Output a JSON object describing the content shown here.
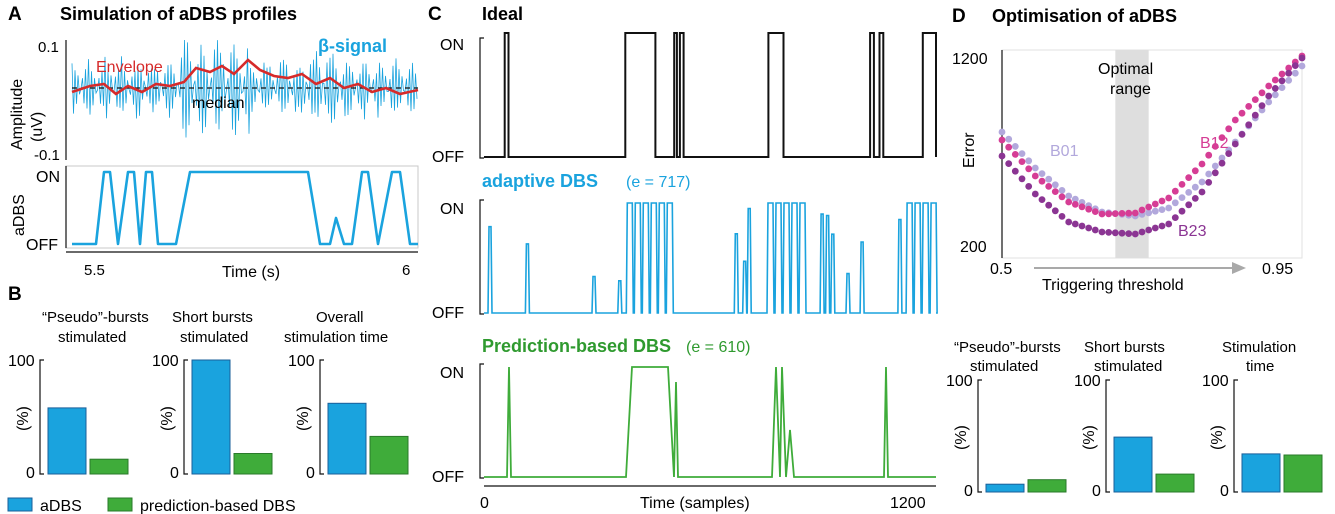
{
  "colors": {
    "adbs": "#1aa3de",
    "pred": "#3fac3a",
    "envelope": "#d62a2a",
    "black": "#111111",
    "b01": "#b2a8dc",
    "b12": "#d63d95",
    "b23": "#8b3593",
    "optimal": "#dedede"
  },
  "panel_a": {
    "letter": "A",
    "title": "Simulation of aDBS profiles",
    "ylabel_top_1": "Amplitude",
    "ylabel_top_2": "(uV)",
    "ytick_top": "0.1",
    "ytick_bottom": "-0.1",
    "envelope_label": "Envelope",
    "beta_label": "β-signal",
    "median_label": "median",
    "ylabel_bottom": "aDBS",
    "on_label": "ON",
    "off_label": "OFF",
    "xlabel": "Time (s)",
    "xtick_left": "5.5",
    "xtick_right": "6"
  },
  "panel_b": {
    "letter": "B",
    "titles_1": [
      "“Pseudo”-bursts",
      "Short bursts",
      "Overall"
    ],
    "titles_2": [
      "stimulated",
      "stimulated",
      "stimulation time"
    ],
    "ylabel": "(%)",
    "ytick_top": "100",
    "ytick_bottom": "0",
    "legend_adbs": "aDBS",
    "legend_pred": "prediction-based DBS"
  },
  "panel_c": {
    "letter": "C",
    "ideal_title": "Ideal",
    "adaptive_title": "adaptive DBS",
    "adaptive_err": "(e = 717)",
    "pred_title": "Prediction-based DBS",
    "pred_err": "(e = 610)",
    "on_label": "ON",
    "off_label": "OFF",
    "xlabel": "Time (samples)",
    "xtick_left": "0",
    "xtick_right": "1200"
  },
  "panel_d": {
    "letter": "D",
    "title": "Optimisation of aDBS",
    "ylabel": "Error",
    "ytick_top": "1200",
    "ytick_bottom": "200",
    "xlabel": "Triggering threshold",
    "xtick_left": "0.5",
    "xtick_right": "0.95",
    "optimal_1": "Optimal",
    "optimal_2": "range",
    "series_b01": "B01",
    "series_b12": "B12",
    "series_b23": "B23",
    "bar_titles_1": [
      "“Pseudo”-bursts",
      "Short bursts",
      "Stimulation"
    ],
    "bar_titles_2": [
      "stimulated",
      "stimulated",
      "time"
    ],
    "bar_ylabel": "(%)",
    "bar_ytick_top": "100",
    "bar_ytick_bottom": "0"
  },
  "chart_data": [
    {
      "type": "bar",
      "panel": "B",
      "title": "“Pseudo”-bursts stimulated",
      "ylabel": "(%)",
      "ylim": [
        0,
        100
      ],
      "series": [
        {
          "name": "aDBS",
          "values": [
            58
          ]
        },
        {
          "name": "prediction-based DBS",
          "values": [
            13
          ]
        }
      ]
    },
    {
      "type": "bar",
      "panel": "B",
      "title": "Short bursts stimulated",
      "ylabel": "(%)",
      "ylim": [
        0,
        100
      ],
      "series": [
        {
          "name": "aDBS",
          "values": [
            100
          ]
        },
        {
          "name": "prediction-based DBS",
          "values": [
            18
          ]
        }
      ]
    },
    {
      "type": "bar",
      "panel": "B",
      "title": "Overall stimulation time",
      "ylabel": "(%)",
      "ylim": [
        0,
        100
      ],
      "series": [
        {
          "name": "aDBS",
          "values": [
            62
          ]
        },
        {
          "name": "prediction-based DBS",
          "values": [
            33
          ]
        }
      ]
    },
    {
      "type": "bar",
      "panel": "D",
      "title": "“Pseudo”-bursts stimulated",
      "ylabel": "(%)",
      "ylim": [
        0,
        100
      ],
      "series": [
        {
          "name": "aDBS",
          "values": [
            7
          ]
        },
        {
          "name": "prediction-based DBS",
          "values": [
            11
          ]
        }
      ]
    },
    {
      "type": "bar",
      "panel": "D",
      "title": "Short bursts stimulated",
      "ylabel": "(%)",
      "ylim": [
        0,
        100
      ],
      "series": [
        {
          "name": "aDBS",
          "values": [
            49
          ]
        },
        {
          "name": "prediction-based DBS",
          "values": [
            16
          ]
        }
      ]
    },
    {
      "type": "bar",
      "panel": "D",
      "title": "Stimulation time",
      "ylabel": "(%)",
      "ylim": [
        0,
        100
      ],
      "series": [
        {
          "name": "aDBS",
          "values": [
            34
          ]
        },
        {
          "name": "prediction-based DBS",
          "values": [
            33
          ]
        }
      ]
    },
    {
      "type": "line",
      "panel": "C",
      "title": "Ideal",
      "xlabel": "Time (samples)",
      "xlim": [
        0,
        1200
      ],
      "y_states": [
        "OFF",
        "ON"
      ],
      "on_intervals": [
        [
          55,
          65
        ],
        [
          375,
          455
        ],
        [
          505,
          512
        ],
        [
          520,
          530
        ],
        [
          755,
          795
        ],
        [
          1025,
          1035
        ],
        [
          1050,
          1060
        ],
        [
          1165,
          1200
        ]
      ]
    },
    {
      "type": "scatter",
      "panel": "D",
      "xlabel": "Triggering threshold",
      "ylabel": "Error",
      "xlim": [
        0.5,
        0.95
      ],
      "ylim": [
        200,
        1200
      ],
      "optimal_range": [
        0.67,
        0.72
      ],
      "series": [
        {
          "name": "B01",
          "x": [
            0.5,
            0.55,
            0.6,
            0.65,
            0.7,
            0.75,
            0.8,
            0.85,
            0.9,
            0.95
          ],
          "y": [
            830,
            650,
            510,
            430,
            410,
            450,
            580,
            780,
            980,
            1160
          ]
        },
        {
          "name": "B12",
          "x": [
            0.5,
            0.55,
            0.6,
            0.65,
            0.7,
            0.75,
            0.8,
            0.85,
            0.9,
            0.95
          ],
          "y": [
            790,
            610,
            480,
            420,
            425,
            500,
            670,
            890,
            1060,
            1210
          ]
        },
        {
          "name": "B23",
          "x": [
            0.5,
            0.55,
            0.6,
            0.65,
            0.7,
            0.75,
            0.8,
            0.85,
            0.9,
            0.95
          ],
          "y": [
            710,
            520,
            380,
            330,
            320,
            370,
            530,
            770,
            1010,
            1200
          ]
        }
      ]
    }
  ]
}
